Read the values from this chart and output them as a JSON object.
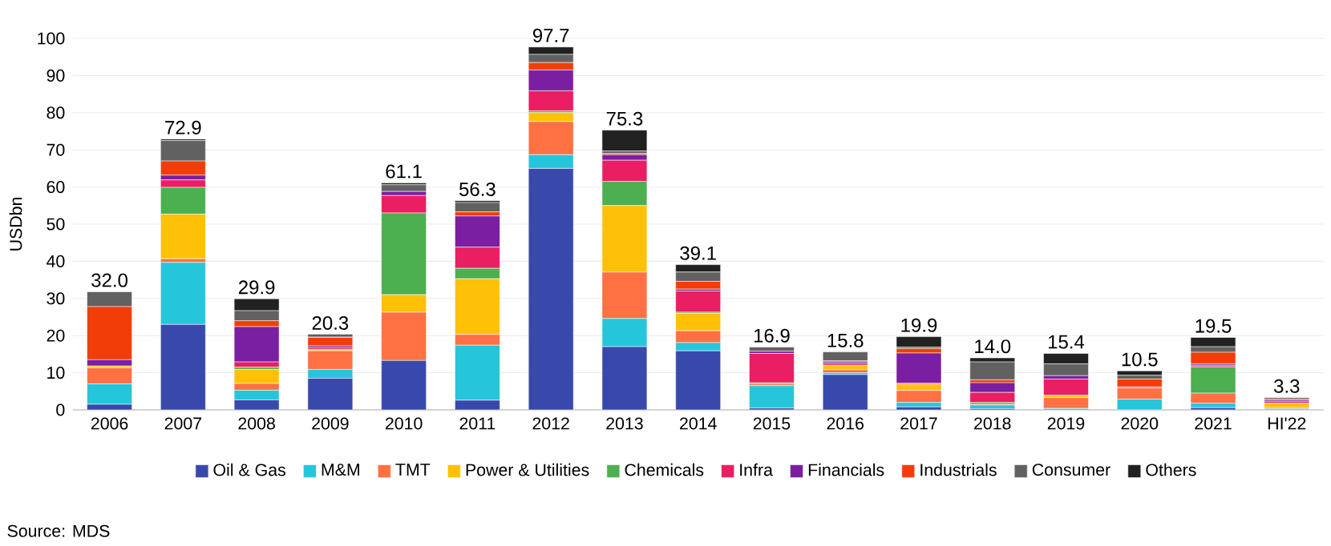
{
  "chart_data": {
    "type": "bar",
    "stacked": true,
    "ylabel": "USDbn",
    "categories": [
      "2006",
      "2007",
      "2008",
      "2009",
      "2010",
      "2011",
      "2012",
      "2013",
      "2014",
      "2015",
      "2016",
      "2017",
      "2018",
      "2019",
      "2020",
      "2021",
      "HI'22"
    ],
    "series": [
      {
        "name": "Oil & Gas",
        "color": "#3949ab",
        "values": [
          1.5,
          23,
          2.7,
          8.5,
          13.3,
          2.6,
          65,
          17,
          15.9,
          0.5,
          9.5,
          0.8,
          0.3,
          0.2,
          0,
          0.6,
          0
        ]
      },
      {
        "name": "M&M",
        "color": "#26c6da",
        "values": [
          5.5,
          16.7,
          2.6,
          2.4,
          0,
          14.8,
          3.7,
          7.6,
          2.2,
          6,
          0.5,
          1.2,
          1,
          0.2,
          2.9,
          1.2,
          0.3
        ]
      },
      {
        "name": "TMT",
        "color": "#ff7043",
        "values": [
          4.3,
          1,
          1.8,
          5,
          13,
          2.9,
          8.9,
          12.5,
          3.2,
          0.5,
          0.8,
          3.2,
          0.2,
          2.9,
          3,
          2.7,
          0.3
        ]
      },
      {
        "name": "Power & Utilities",
        "color": "#ffc107",
        "values": [
          0.5,
          12,
          3.8,
          0.3,
          4.7,
          15,
          2.4,
          17.9,
          4.7,
          0,
          1.2,
          1.7,
          0,
          0.6,
          0,
          0,
          1.2
        ]
      },
      {
        "name": "Chemicals",
        "color": "#4caf50",
        "values": [
          null,
          7.2,
          0.6,
          0,
          22,
          2.8,
          0.5,
          6.5,
          0.3,
          0.3,
          null,
          null,
          0.5,
          0,
          0,
          7.1,
          0
        ]
      },
      {
        "name": "Infra",
        "color": "#e91e63",
        "values": [
          0,
          2,
          1.4,
          0.5,
          4.7,
          5.7,
          5.4,
          5.7,
          5.7,
          7.9,
          0.5,
          0.3,
          2.7,
          4.4,
          0.3,
          0.4,
          0.5
        ]
      },
      {
        "name": "Financials",
        "color": "#7b1fa2",
        "values": [
          1.7,
          1.3,
          9.5,
          0.5,
          1.1,
          8.4,
          5.6,
          1.5,
          0.5,
          0.6,
          0.4,
          8.1,
          2.6,
          0.9,
          0,
          0.4,
          0.4
        ]
      },
      {
        "name": "Industrials",
        "color": "#f23d08",
        "values": [
          14.3,
          3.8,
          1.6,
          2.3,
          0,
          1.1,
          2,
          0.3,
          2.1,
          0,
          0.3,
          1.2,
          0.8,
          null,
          2.1,
          3.1,
          0.3
        ]
      },
      {
        "name": "Consumer",
        "color": "#616161",
        "values": [
          4,
          5.5,
          2.7,
          0.3,
          1.8,
          2.5,
          2.2,
          0.7,
          2.5,
          1.1,
          2.4,
          0.4,
          4.8,
          3.2,
          1,
          1.5,
          0
        ]
      },
      {
        "name": "Others",
        "color": "#212121",
        "values": [
          0,
          0.4,
          3.2,
          0.5,
          0.5,
          0.5,
          2,
          5.6,
          2,
          0,
          0,
          2.8,
          1.1,
          2.8,
          1.2,
          2.5,
          0.3
        ]
      }
    ],
    "totals": [
      "32.0",
      "72.9",
      "29.9",
      "20.3",
      "61.1",
      "56.3",
      "97.7",
      "75.3",
      "39.1",
      "16.9",
      "15.8",
      "19.9",
      "14.0",
      "15.4",
      "10.5",
      "19.5",
      "3.3"
    ],
    "ylim": [
      0,
      100
    ],
    "yticks": [
      0,
      10,
      20,
      30,
      40,
      50,
      60,
      70,
      80,
      90,
      100
    ],
    "grid": "y",
    "legend": "bottom",
    "annotations": [
      "Source: MDS"
    ]
  }
}
